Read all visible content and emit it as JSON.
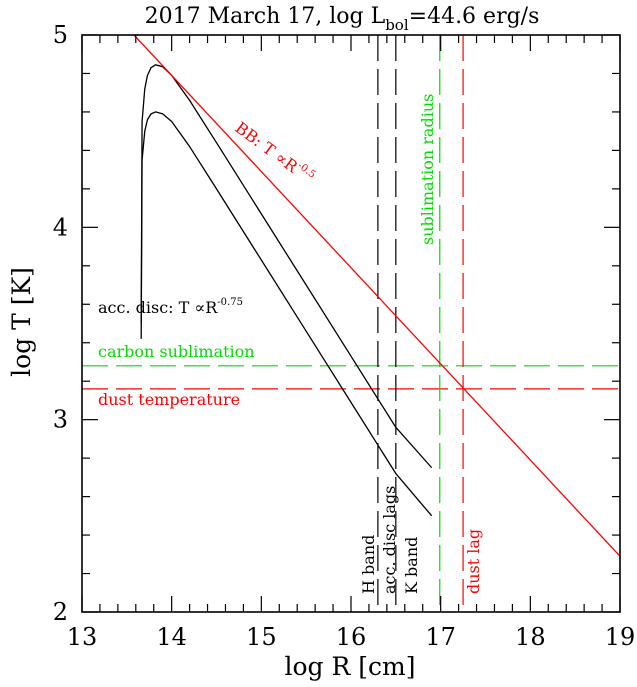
{
  "chart_data": {
    "type": "line",
    "title": "2017 March 17, log L",
    "title_sub": "bol",
    "title_tail": "=44.6 erg/s",
    "xlabel": "log R [cm]",
    "ylabel": "log T [K]",
    "xlim": [
      13,
      19
    ],
    "ylim": [
      2,
      5
    ],
    "x_ticks": [
      "13",
      "14",
      "15",
      "16",
      "17",
      "18",
      "19"
    ],
    "y_ticks": [
      "2",
      "3",
      "4",
      "5"
    ],
    "grid": false,
    "colors": {
      "black": "#000000",
      "red": "#ff0000",
      "green": "#00dd00"
    },
    "series": [
      {
        "id": "disc_upper",
        "color": "#000000",
        "x": [
          13.66,
          13.67,
          13.7,
          13.73,
          13.77,
          13.82,
          13.9,
          14.0,
          14.2,
          14.5,
          15.0,
          15.5,
          16.0,
          16.5,
          16.9
        ],
        "y": [
          3.5,
          4.55,
          4.72,
          4.79,
          4.83,
          4.845,
          4.835,
          4.79,
          4.66,
          4.44,
          4.07,
          3.7,
          3.33,
          2.96,
          2.75
        ]
      },
      {
        "id": "disc_lower",
        "color": "#000000",
        "x": [
          13.66,
          13.67,
          13.7,
          13.73,
          13.77,
          13.82,
          13.9,
          14.0,
          14.2,
          14.5,
          15.0,
          15.5,
          16.0,
          16.5,
          16.9
        ],
        "y": [
          3.42,
          4.35,
          4.5,
          4.56,
          4.59,
          4.6,
          4.59,
          4.55,
          4.42,
          4.2,
          3.83,
          3.46,
          3.09,
          2.72,
          2.5
        ]
      },
      {
        "id": "blackbody",
        "color": "#ff0000",
        "x": [
          13.58,
          19
        ],
        "y": [
          5.0,
          2.29
        ]
      }
    ],
    "hlines": [
      {
        "id": "carbon_sublimation",
        "y": 3.28,
        "color": "#00dd00",
        "label": "carbon sublimation"
      },
      {
        "id": "dust_temperature",
        "y": 3.16,
        "color": "#ff0000",
        "label": "dust temperature"
      }
    ],
    "vlines": [
      {
        "id": "h_band_lag",
        "x": 16.3,
        "color": "#000000"
      },
      {
        "id": "k_band_lag",
        "x": 16.5,
        "color": "#000000"
      },
      {
        "id": "sublimation_radius",
        "x": 16.99,
        "color": "#00dd00"
      },
      {
        "id": "dust_lag",
        "x": 17.25,
        "color": "#ff0000"
      }
    ],
    "annotations": {
      "bb_prefix": "BB: T ∝R",
      "bb_exp": "-0.5",
      "disc_prefix": "acc. disc: T ∝R",
      "disc_exp": "-0.75",
      "sublimation_radius": "sublimation radius",
      "h_band": "H band",
      "acc_disc_lags": "acc. disc lags",
      "k_band": "K band",
      "dust_lag": "dust lag"
    }
  }
}
